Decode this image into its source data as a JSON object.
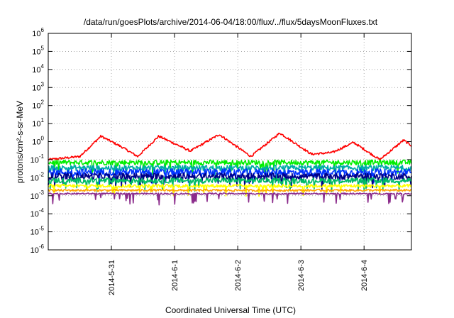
{
  "chart_data": {
    "type": "line",
    "title": "/data/run/goesPlots/archive/2014-06-04/18:00/flux/../flux/5daysMoonFluxes.txt",
    "xlabel": "Coordinated Universal Time (UTC)",
    "ylabel": "protons/cm²-s-sr-MeV",
    "y_scale": "log",
    "ylim": [
      1e-06,
      1000000.0
    ],
    "y_ticks": [
      {
        "base": "10",
        "exp": "-6",
        "value": 1e-06
      },
      {
        "base": "10",
        "exp": "-5",
        "value": 1e-05
      },
      {
        "base": "10",
        "exp": "-4",
        "value": 0.0001
      },
      {
        "base": "10",
        "exp": "-3",
        "value": 0.001
      },
      {
        "base": "10",
        "exp": "-2",
        "value": 0.01
      },
      {
        "base": "10",
        "exp": "-1",
        "value": 0.1
      },
      {
        "base": "10",
        "exp": "0",
        "value": 1
      },
      {
        "base": "10",
        "exp": "1",
        "value": 10
      },
      {
        "base": "10",
        "exp": "2",
        "value": 100
      },
      {
        "base": "10",
        "exp": "3",
        "value": 1000
      },
      {
        "base": "10",
        "exp": "4",
        "value": 10000
      },
      {
        "base": "10",
        "exp": "5",
        "value": 100000
      },
      {
        "base": "10",
        "exp": "6",
        "value": 1000000
      }
    ],
    "xlim": [
      "2014-05-30 00:00",
      "2014-06-04 18:00"
    ],
    "x_ticks": [
      "2014-5-31",
      "2014-6-1",
      "2014-6-2",
      "2014-6-3",
      "2014-6-4"
    ],
    "x_tick_dates": [
      "2014-05-31",
      "2014-06-01",
      "2014-06-02",
      "2014-06-03",
      "2014-06-04"
    ],
    "grid": true,
    "series": [
      {
        "color": "#ff0000",
        "base": 0.45,
        "noise": 0.12,
        "daily_amp": 0.55,
        "peak_hour": 17,
        "trend": 0.0,
        "points": [
          [
            "2014-05-30 00:00",
            0.1
          ],
          [
            "2014-05-30 12:00",
            0.15
          ],
          [
            "2014-05-30 20:00",
            2.0
          ],
          [
            "2014-05-31 04:00",
            0.5
          ],
          [
            "2014-05-31 10:00",
            0.15
          ],
          [
            "2014-05-31 18:00",
            2.0
          ],
          [
            "2014-06-01 06:00",
            0.3
          ],
          [
            "2014-06-01 17:00",
            2.5
          ],
          [
            "2014-06-02 05:00",
            0.15
          ],
          [
            "2014-06-02 16:00",
            3.0
          ],
          [
            "2014-06-03 04:00",
            0.2
          ],
          [
            "2014-06-03 12:00",
            0.25
          ],
          [
            "2014-06-03 20:00",
            0.9
          ],
          [
            "2014-06-04 06:00",
            0.1
          ],
          [
            "2014-06-04 15:00",
            1.2
          ],
          [
            "2014-06-04 18:00",
            0.6
          ]
        ]
      },
      {
        "color": "#00ee00",
        "base": 0.07,
        "noise": 0.28,
        "spikes": 0.05
      },
      {
        "color": "#00aaaa",
        "base": 0.035,
        "noise": 0.3,
        "spikes": 0.05
      },
      {
        "color": "#0033ff",
        "base": 0.02,
        "noise": 0.38,
        "spikes": 0.06
      },
      {
        "color": "#000088",
        "base": 0.012,
        "noise": 0.35,
        "spikes": 0.06
      },
      {
        "color": "#00bb66",
        "base": 0.007,
        "noise": 0.3,
        "spikes": 0.05
      },
      {
        "color": "#ffff00",
        "base": 0.0035,
        "noise": 0.18,
        "spikes": 0.04
      },
      {
        "color": "#ffa500",
        "base": 0.002,
        "noise": 0.12,
        "spikes": 0.0
      },
      {
        "color": "#8b2b8b",
        "base": 0.0013,
        "noise": 0.08,
        "spikes": 0.04
      }
    ]
  }
}
